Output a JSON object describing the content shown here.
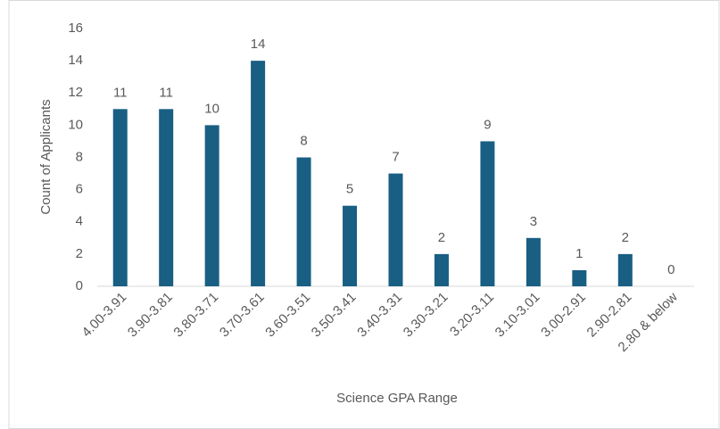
{
  "chart_data": {
    "type": "bar",
    "x_label": "Science GPA Range",
    "y_label": "Count of Applicants",
    "categories": [
      "4.00-3.91",
      "3.90-3.81",
      "3.80-3.71",
      "3.70-3.61",
      "3.60-3.51",
      "3.50-3.41",
      "3.40-3.31",
      "3.30-3.21",
      "3.20-3.11",
      "3.10-3.01",
      "3.00-2.91",
      "2.90-2.81",
      "2.80 & below"
    ],
    "values": [
      11,
      11,
      10,
      14,
      8,
      5,
      7,
      2,
      9,
      3,
      1,
      2,
      0
    ],
    "color": "#195e83",
    "ylim": [
      0,
      16
    ],
    "yticks": [
      0,
      2,
      4,
      6,
      8,
      10,
      12,
      14,
      16
    ],
    "grid": false
  }
}
